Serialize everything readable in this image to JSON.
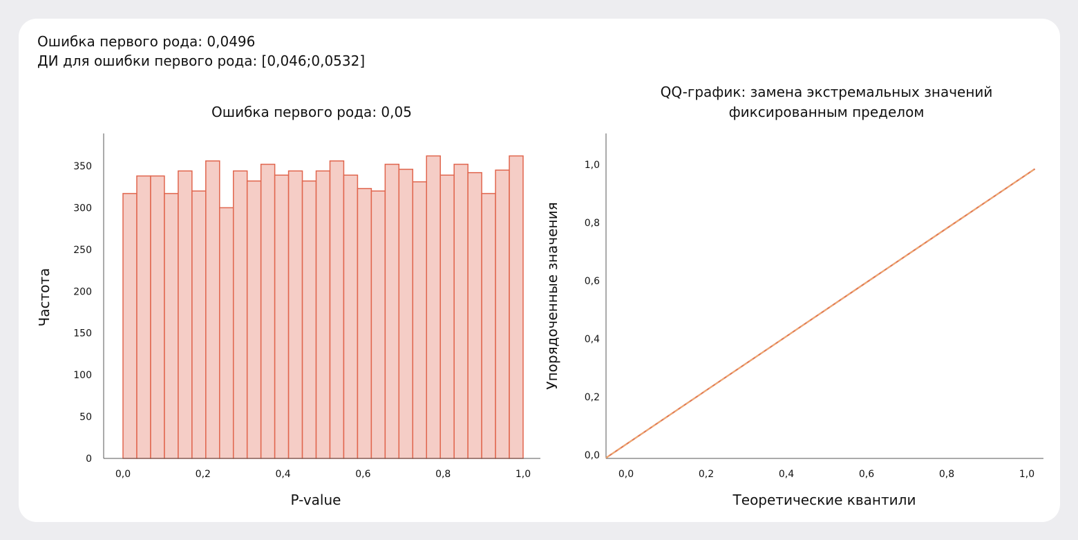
{
  "summary": {
    "line1": "Ошибка первого рода: 0,0496",
    "line2": "ДИ для ошибки первого рода: [0,046;0,0532]"
  },
  "colors": {
    "bar_fill": "#f5cdc6",
    "bar_edge": "#e0654d",
    "qq_line": "#e07a56",
    "qq_ref": "#f0b070",
    "axis": "#555555"
  },
  "chart_data": [
    {
      "type": "bar",
      "title": "Ошибка первого рода: 0,05",
      "xlabel": "P-value",
      "ylabel": "Частота",
      "xlim": [
        0,
        1
      ],
      "ylim": [
        0,
        380
      ],
      "xticks": [
        0,
        0.2,
        0.4,
        0.6,
        0.8,
        1.0
      ],
      "xtick_labels": [
        "0,0",
        "0,2",
        "0,4",
        "0,6",
        "0,8",
        "1,0"
      ],
      "yticks": [
        0,
        50,
        100,
        150,
        200,
        250,
        300,
        350
      ],
      "ytick_labels": [
        "0",
        "50",
        "100",
        "150",
        "200",
        "250",
        "300",
        "350"
      ],
      "bin_width": 0.03448,
      "values": [
        317,
        338,
        338,
        317,
        344,
        320,
        356,
        300,
        344,
        332,
        352,
        339,
        344,
        332,
        344,
        356,
        339,
        323,
        320,
        352,
        346,
        331,
        362,
        339,
        352,
        342,
        317,
        345,
        362
      ],
      "grid": false
    },
    {
      "type": "line",
      "title": [
        "QQ-график: замена экстремальных значений",
        "фиксированным пределом"
      ],
      "xlabel": "Теоретические квантили",
      "ylabel": "Упорядоченные значения",
      "xlim": [
        -0.05,
        1.05
      ],
      "ylim": [
        -0.01,
        1.1
      ],
      "xticks": [
        0,
        0.2,
        0.4,
        0.6,
        0.8,
        1.0
      ],
      "xtick_labels": [
        "0,0",
        "0,2",
        "0,4",
        "0,6",
        "0,8",
        "1,0"
      ],
      "yticks": [
        0,
        0.2,
        0.4,
        0.6,
        0.8,
        1.0
      ],
      "ytick_labels": [
        "0,0",
        "0,2",
        "0,4",
        "0,6",
        "0,8",
        "1,0"
      ],
      "series": [
        {
          "x": [
            -0.05,
            1.02
          ],
          "y": [
            -0.01,
            0.985
          ]
        }
      ],
      "grid": false
    }
  ]
}
